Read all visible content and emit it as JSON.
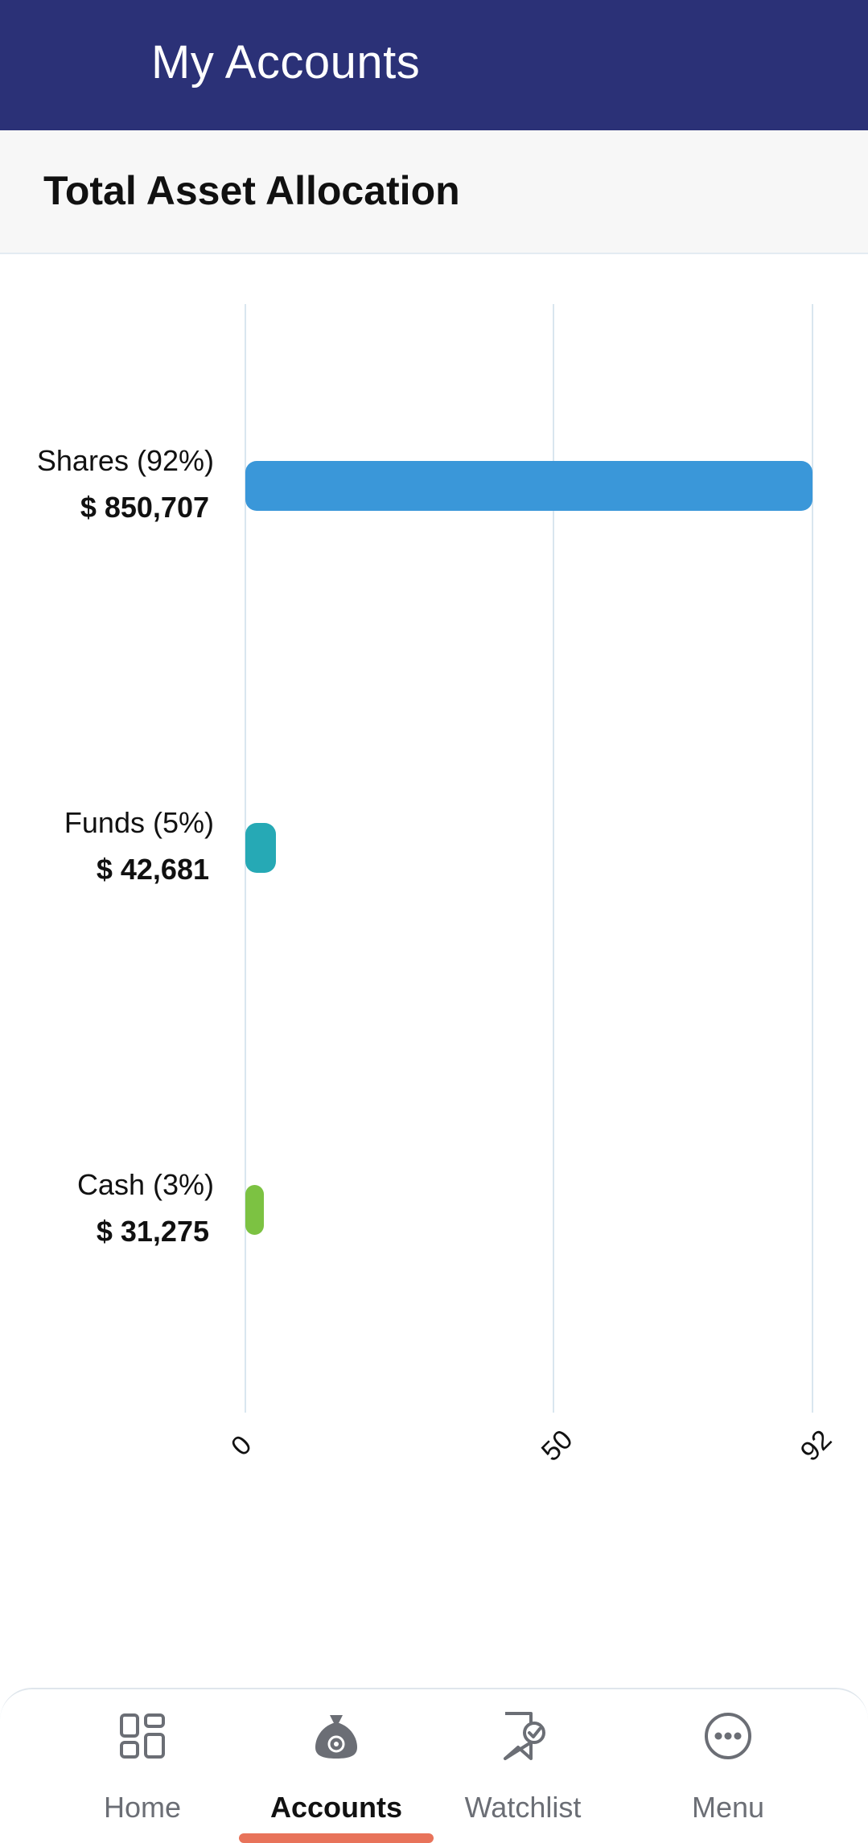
{
  "header": {
    "title": "My Accounts",
    "background": "#2b3177"
  },
  "section": {
    "title": "Total Asset Allocation"
  },
  "chart_data": {
    "type": "bar",
    "orientation": "horizontal",
    "title": "Total Asset Allocation",
    "categories": [
      "Shares",
      "Funds",
      "Cash"
    ],
    "series": [
      {
        "values": [
          92,
          5,
          3
        ]
      }
    ],
    "labels": [
      {
        "name": "Shares (92%)",
        "amount": "$ 850,707",
        "percent": 92,
        "color": "#3a97d9"
      },
      {
        "name": "Funds (5%)",
        "amount": "$ 42,681",
        "percent": 5,
        "color": "#26a9b5"
      },
      {
        "name": "Cash (3%)",
        "amount": "$ 31,275",
        "percent": 3,
        "color": "#7cc242"
      }
    ],
    "x_ticks": [
      "0",
      "50",
      "92"
    ],
    "xlim": [
      0,
      92
    ],
    "grid": true,
    "legend": "none"
  },
  "nav": {
    "items": [
      {
        "label": "Home",
        "icon": "home-grid-icon",
        "active": false
      },
      {
        "label": "Accounts",
        "icon": "money-bag-icon",
        "active": true
      },
      {
        "label": "Watchlist",
        "icon": "watchlist-bookmark-icon",
        "active": false
      },
      {
        "label": "Menu",
        "icon": "more-menu-icon",
        "active": false
      }
    ],
    "accent": "#e8735a"
  }
}
